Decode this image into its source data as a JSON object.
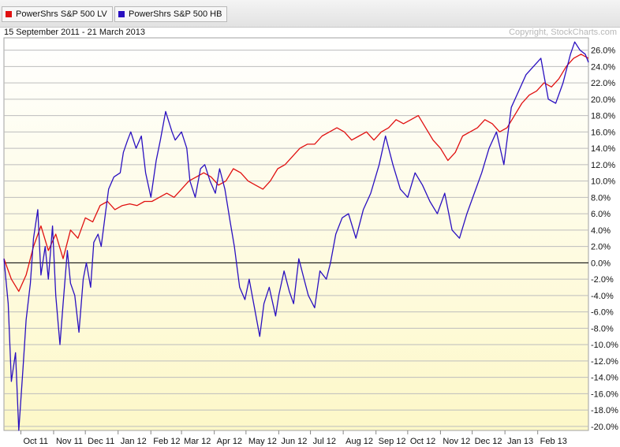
{
  "legend": [
    {
      "label": "PowerShrs S&P 500 LV",
      "color": "#e01010"
    },
    {
      "label": "PowerShrs S&P 500 HB",
      "color": "#2a10c0"
    }
  ],
  "date_range": "15 September 2011 - 21 March 2013",
  "copyright": "Copyright, StockCharts.com",
  "chart_data": {
    "type": "line",
    "title": "",
    "xlabel": "",
    "ylabel": "",
    "x_tick_labels": [
      "Oct 11",
      "Nov 11",
      "Dec 11",
      "Jan 12",
      "Feb 12",
      "Mar 12",
      "Apr 12",
      "May 12",
      "Jun 12",
      "Jul 12",
      "Aug 12",
      "Sep 12",
      "Oct 12",
      "Nov 12",
      "Dec 12",
      "Jan 13",
      "Feb 13"
    ],
    "y_tick_labels": [
      "26.0%",
      "24.0%",
      "22.0%",
      "20.0%",
      "18.0%",
      "16.0%",
      "14.0%",
      "12.0%",
      "10.0%",
      "8.0%",
      "6.0%",
      "4.0%",
      "2.0%",
      "0.0%",
      "-2.0%",
      "-4.0%",
      "-6.0%",
      "-8.0%",
      "-10.0%",
      "-12.0%",
      "-14.0%",
      "-16.0%",
      "-18.0%",
      "-20.0%"
    ],
    "ylim": [
      -20.5,
      27.5
    ],
    "y_axis_position": "right",
    "grid": true,
    "zero_line": 0,
    "series": [
      {
        "name": "PowerShrs S&P 500 LV",
        "color": "#e01010",
        "x": [
          "2011-09-15",
          "2011-09-22",
          "2011-09-29",
          "2011-10-06",
          "2011-10-13",
          "2011-10-20",
          "2011-10-27",
          "2011-11-03",
          "2011-11-10",
          "2011-11-17",
          "2011-11-24",
          "2011-12-01",
          "2011-12-08",
          "2011-12-15",
          "2011-12-22",
          "2011-12-29",
          "2012-01-05",
          "2012-01-12",
          "2012-01-19",
          "2012-01-26",
          "2012-02-02",
          "2012-02-09",
          "2012-02-16",
          "2012-02-23",
          "2012-03-01",
          "2012-03-08",
          "2012-03-15",
          "2012-03-22",
          "2012-03-29",
          "2012-04-05",
          "2012-04-12",
          "2012-04-19",
          "2012-04-26",
          "2012-05-03",
          "2012-05-10",
          "2012-05-17",
          "2012-05-24",
          "2012-05-31",
          "2012-06-07",
          "2012-06-14",
          "2012-06-21",
          "2012-06-28",
          "2012-07-05",
          "2012-07-12",
          "2012-07-19",
          "2012-07-26",
          "2012-08-02",
          "2012-08-09",
          "2012-08-16",
          "2012-08-23",
          "2012-08-30",
          "2012-09-06",
          "2012-09-13",
          "2012-09-20",
          "2012-09-27",
          "2012-10-04",
          "2012-10-11",
          "2012-10-18",
          "2012-10-25",
          "2012-11-01",
          "2012-11-08",
          "2012-11-15",
          "2012-11-22",
          "2012-11-29",
          "2012-12-06",
          "2012-12-13",
          "2012-12-20",
          "2012-12-27",
          "2013-01-03",
          "2013-01-10",
          "2013-01-17",
          "2013-01-24",
          "2013-01-31",
          "2013-02-07",
          "2013-02-14",
          "2013-02-21",
          "2013-02-28",
          "2013-03-07",
          "2013-03-14",
          "2013-03-21"
        ],
        "values": [
          0.5,
          -2.0,
          -3.5,
          -1.5,
          2.0,
          4.5,
          1.5,
          3.5,
          0.5,
          4.0,
          3.0,
          5.5,
          5.0,
          7.0,
          7.5,
          6.5,
          7.0,
          7.2,
          7.0,
          7.5,
          7.5,
          8.0,
          8.5,
          8.0,
          9.0,
          10.0,
          10.5,
          11.0,
          10.5,
          9.5,
          10.0,
          11.5,
          11.0,
          10.0,
          9.5,
          9.0,
          10.0,
          11.5,
          12.0,
          13.0,
          14.0,
          14.5,
          14.5,
          15.5,
          16.0,
          16.5,
          16.0,
          15.0,
          15.5,
          16.0,
          15.0,
          16.0,
          16.5,
          17.5,
          17.0,
          17.5,
          18.0,
          16.5,
          15.0,
          14.0,
          12.5,
          13.5,
          15.5,
          16.0,
          16.5,
          17.5,
          17.0,
          16.0,
          16.5,
          18.0,
          19.5,
          20.5,
          21.0,
          22.0,
          21.5,
          22.5,
          24.0,
          25.0,
          25.5,
          25.0
        ]
      },
      {
        "name": "PowerShrs S&P 500 HB",
        "color": "#2a10c0",
        "x": [
          "2011-09-15",
          "2011-09-19",
          "2011-09-22",
          "2011-09-26",
          "2011-09-29",
          "2011-10-03",
          "2011-10-06",
          "2011-10-10",
          "2011-10-13",
          "2011-10-17",
          "2011-10-20",
          "2011-10-24",
          "2011-10-27",
          "2011-10-31",
          "2011-11-03",
          "2011-11-07",
          "2011-11-10",
          "2011-11-14",
          "2011-11-17",
          "2011-11-21",
          "2011-11-25",
          "2011-11-29",
          "2011-12-02",
          "2011-12-06",
          "2011-12-09",
          "2011-12-13",
          "2011-12-16",
          "2011-12-20",
          "2011-12-23",
          "2011-12-28",
          "2012-01-03",
          "2012-01-06",
          "2012-01-10",
          "2012-01-13",
          "2012-01-18",
          "2012-01-23",
          "2012-01-27",
          "2012-02-01",
          "2012-02-06",
          "2012-02-10",
          "2012-02-15",
          "2012-02-21",
          "2012-02-24",
          "2012-03-01",
          "2012-03-06",
          "2012-03-09",
          "2012-03-14",
          "2012-03-19",
          "2012-03-23",
          "2012-03-28",
          "2012-04-02",
          "2012-04-06",
          "2012-04-11",
          "2012-04-16",
          "2012-04-20",
          "2012-04-25",
          "2012-04-30",
          "2012-05-04",
          "2012-05-09",
          "2012-05-14",
          "2012-05-18",
          "2012-05-23",
          "2012-05-29",
          "2012-06-01",
          "2012-06-06",
          "2012-06-11",
          "2012-06-15",
          "2012-06-20",
          "2012-06-25",
          "2012-06-29",
          "2012-07-05",
          "2012-07-10",
          "2012-07-16",
          "2012-07-20",
          "2012-07-25",
          "2012-07-31",
          "2012-08-06",
          "2012-08-13",
          "2012-08-20",
          "2012-08-27",
          "2012-09-04",
          "2012-09-10",
          "2012-09-17",
          "2012-09-24",
          "2012-10-01",
          "2012-10-08",
          "2012-10-15",
          "2012-10-22",
          "2012-10-29",
          "2012-11-05",
          "2012-11-12",
          "2012-11-19",
          "2012-11-26",
          "2012-12-03",
          "2012-12-10",
          "2012-12-17",
          "2012-12-24",
          "2012-12-31",
          "2013-01-07",
          "2013-01-14",
          "2013-01-21",
          "2013-01-28",
          "2013-02-04",
          "2013-02-11",
          "2013-02-18",
          "2013-02-25",
          "2013-03-04",
          "2013-03-08",
          "2013-03-13",
          "2013-03-18",
          "2013-03-21"
        ],
        "values": [
          0.5,
          -5.0,
          -14.5,
          -11.0,
          -20.5,
          -13.0,
          -7.0,
          -2.5,
          3.0,
          6.5,
          -1.5,
          2.0,
          -2.0,
          4.5,
          -4.0,
          -10.0,
          -5.0,
          1.5,
          -2.5,
          -4.0,
          -8.5,
          -2.0,
          0.0,
          -3.0,
          2.5,
          3.5,
          2.0,
          6.0,
          9.0,
          10.5,
          11.0,
          13.5,
          15.0,
          16.0,
          14.0,
          15.5,
          11.0,
          8.0,
          12.5,
          15.0,
          18.5,
          16.0,
          15.0,
          16.0,
          14.0,
          10.0,
          8.0,
          11.5,
          12.0,
          10.0,
          8.5,
          11.5,
          9.0,
          5.0,
          2.0,
          -3.0,
          -4.5,
          -2.0,
          -5.5,
          -9.0,
          -5.0,
          -3.0,
          -6.5,
          -4.0,
          -1.0,
          -3.5,
          -5.0,
          0.5,
          -2.0,
          -4.0,
          -5.5,
          -1.0,
          -2.0,
          0.0,
          3.5,
          5.5,
          6.0,
          3.0,
          6.5,
          8.5,
          12.0,
          15.5,
          12.0,
          9.0,
          8.0,
          11.0,
          9.5,
          7.5,
          6.0,
          8.5,
          4.0,
          3.0,
          6.0,
          8.5,
          11.0,
          14.0,
          16.0,
          12.0,
          19.0,
          21.0,
          23.0,
          24.0,
          25.0,
          20.0,
          19.5,
          22.0,
          25.5,
          27.0,
          26.0,
          25.5,
          24.5
        ]
      }
    ]
  }
}
